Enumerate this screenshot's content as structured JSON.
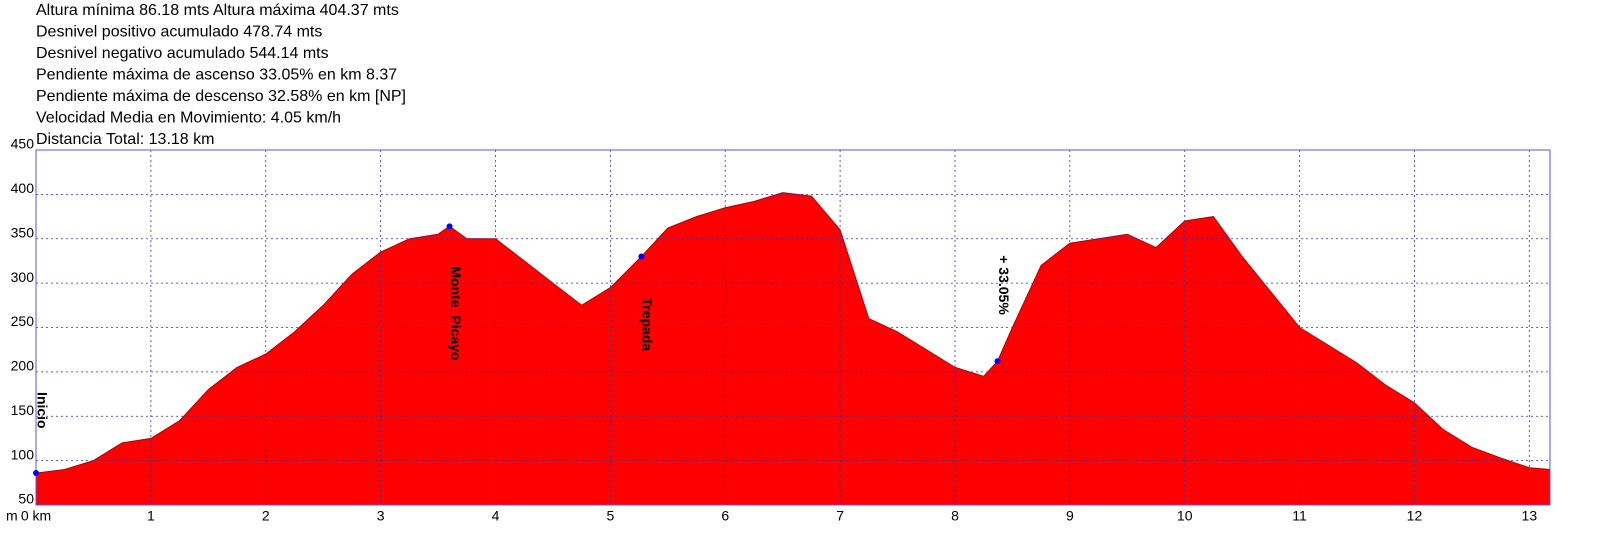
{
  "chart_data": {
    "type": "area",
    "stats": [
      "Altura mínima  86.18 mts   Altura máxima 404.37 mts",
      "Desnivel positivo acumulado 478.74 mts",
      "Desnivel negativo acumulado 544.14 mts",
      "Pendiente máxima de ascenso  33.05% en km 8.37",
      "Pendiente máxima de descenso 32.58%  en km [NP]",
      "Velocidad Media en Movimiento: 4.05 km/h",
      "Distancia Total: 13.18 km"
    ],
    "y_unit_label": "m",
    "x": [
      0,
      0.25,
      0.5,
      0.75,
      1.0,
      1.25,
      1.5,
      1.75,
      2.0,
      2.25,
      2.5,
      2.75,
      3.0,
      3.25,
      3.5,
      3.6,
      3.75,
      4.0,
      4.25,
      4.5,
      4.75,
      5.0,
      5.27,
      5.5,
      5.75,
      6.0,
      6.25,
      6.5,
      6.75,
      7.0,
      7.25,
      7.5,
      7.75,
      8.0,
      8.25,
      8.37,
      8.5,
      8.75,
      9.0,
      9.25,
      9.5,
      9.75,
      10.0,
      10.25,
      10.5,
      10.75,
      11.0,
      11.25,
      11.5,
      11.75,
      12.0,
      12.25,
      12.5,
      12.75,
      13.0,
      13.18
    ],
    "values": [
      86,
      90,
      100,
      120,
      125,
      145,
      180,
      205,
      220,
      245,
      275,
      310,
      335,
      350,
      355,
      364,
      350,
      350,
      325,
      300,
      275,
      295,
      330,
      362,
      375,
      385,
      392,
      402,
      398,
      360,
      260,
      245,
      225,
      205,
      195,
      212,
      250,
      320,
      345,
      350,
      355,
      340,
      370,
      375,
      330,
      290,
      250,
      230,
      210,
      185,
      165,
      135,
      115,
      103,
      92,
      90
    ],
    "color": "#ff0000",
    "xlim": [
      0,
      13.18
    ],
    "ylim": [
      50,
      450
    ],
    "xticks": [
      {
        "value": 0,
        "label": "0 km"
      },
      1,
      2,
      3,
      4,
      5,
      6,
      7,
      8,
      9,
      10,
      11,
      12,
      13
    ],
    "yticks": [
      50,
      100,
      150,
      200,
      250,
      300,
      350,
      400,
      450
    ],
    "grid": true,
    "waypoints": [
      {
        "label": "Inicio",
        "x": 0,
        "y": 86
      },
      {
        "label": "Monte_Picayo",
        "x": 3.6,
        "y": 364
      },
      {
        "label": "Trepada",
        "x": 5.27,
        "y": 330
      },
      {
        "label": "+ 33.05%",
        "x": 8.37,
        "y": 212
      }
    ]
  }
}
